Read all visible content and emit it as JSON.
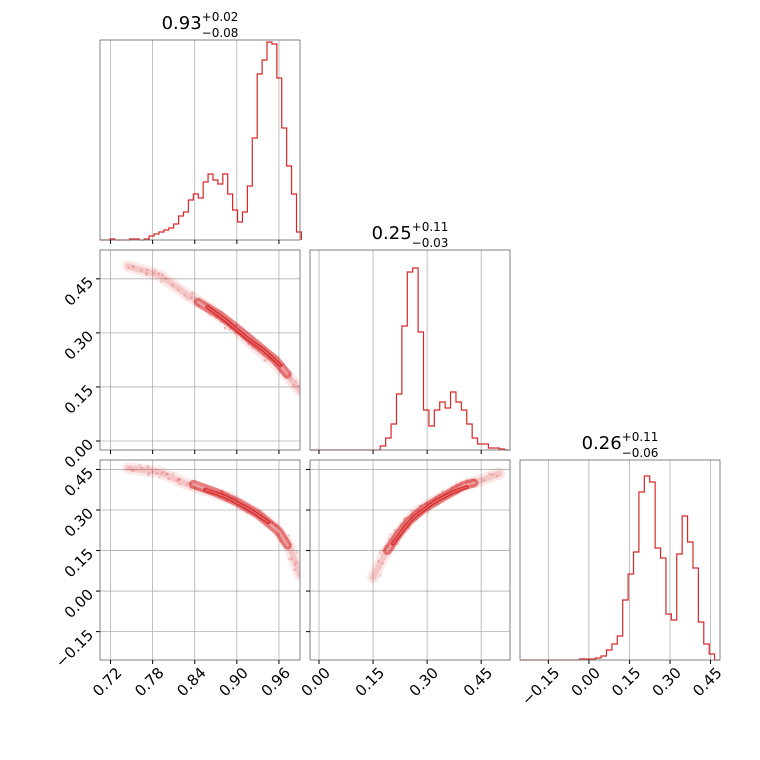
{
  "chart_data": {
    "type": "corner",
    "color": "#d62728",
    "parameters": [
      {
        "title": {
          "median": "0.93",
          "plus": "+0.02",
          "minus": "−0.08"
        },
        "range": [
          0.705,
          0.99
        ],
        "ticks": [
          0.72,
          0.78,
          0.84,
          0.9,
          0.96
        ],
        "tick_labels": [
          "0.72",
          "0.78",
          "0.84",
          "0.90",
          "0.96"
        ],
        "histogram": [
          [
            0.705,
            0.0
          ],
          [
            0.712,
            0.0
          ],
          [
            0.719,
            0.005
          ],
          [
            0.726,
            0.0
          ],
          [
            0.733,
            0.0
          ],
          [
            0.74,
            0.0
          ],
          [
            0.747,
            0.005
          ],
          [
            0.754,
            0.005
          ],
          [
            0.761,
            0.0
          ],
          [
            0.768,
            0.005
          ],
          [
            0.775,
            0.02
          ],
          [
            0.782,
            0.03
          ],
          [
            0.789,
            0.04
          ],
          [
            0.796,
            0.05
          ],
          [
            0.803,
            0.06
          ],
          [
            0.81,
            0.08
          ],
          [
            0.817,
            0.12
          ],
          [
            0.824,
            0.14
          ],
          [
            0.831,
            0.2
          ],
          [
            0.838,
            0.23
          ],
          [
            0.845,
            0.21
          ],
          [
            0.852,
            0.29
          ],
          [
            0.859,
            0.33
          ],
          [
            0.866,
            0.3
          ],
          [
            0.873,
            0.28
          ],
          [
            0.88,
            0.33
          ],
          [
            0.887,
            0.23
          ],
          [
            0.894,
            0.15
          ],
          [
            0.901,
            0.09
          ],
          [
            0.908,
            0.14
          ],
          [
            0.915,
            0.27
          ],
          [
            0.922,
            0.51
          ],
          [
            0.929,
            0.83
          ],
          [
            0.936,
            0.9
          ],
          [
            0.943,
            0.99
          ],
          [
            0.95,
            0.98
          ],
          [
            0.957,
            0.81
          ],
          [
            0.964,
            0.56
          ],
          [
            0.971,
            0.37
          ],
          [
            0.978,
            0.23
          ],
          [
            0.985,
            0.04
          ]
        ]
      },
      {
        "title": {
          "median": "0.25",
          "plus": "+0.11",
          "minus": "−0.03"
        },
        "range": [
          -0.025,
          0.53
        ],
        "ticks": [
          0.0,
          0.15,
          0.3,
          0.45
        ],
        "tick_labels": [
          "0.00",
          "0.15",
          "0.30",
          "0.45"
        ],
        "histogram": [
          [
            -0.025,
            0.0
          ],
          [
            -0.01,
            0.0
          ],
          [
            0.005,
            0.0
          ],
          [
            0.02,
            0.0
          ],
          [
            0.035,
            0.0
          ],
          [
            0.05,
            0.0
          ],
          [
            0.065,
            0.0
          ],
          [
            0.08,
            0.0
          ],
          [
            0.095,
            0.0
          ],
          [
            0.11,
            0.0
          ],
          [
            0.125,
            0.0
          ],
          [
            0.14,
            0.0
          ],
          [
            0.155,
            0.0
          ],
          [
            0.17,
            0.02
          ],
          [
            0.185,
            0.06
          ],
          [
            0.2,
            0.13
          ],
          [
            0.215,
            0.28
          ],
          [
            0.23,
            0.62
          ],
          [
            0.245,
            0.89
          ],
          [
            0.26,
            0.91
          ],
          [
            0.275,
            0.59
          ],
          [
            0.29,
            0.2
          ],
          [
            0.305,
            0.12
          ],
          [
            0.32,
            0.2
          ],
          [
            0.335,
            0.24
          ],
          [
            0.35,
            0.21
          ],
          [
            0.365,
            0.29
          ],
          [
            0.38,
            0.24
          ],
          [
            0.395,
            0.2
          ],
          [
            0.41,
            0.13
          ],
          [
            0.425,
            0.06
          ],
          [
            0.44,
            0.03
          ],
          [
            0.455,
            0.03
          ],
          [
            0.47,
            0.01
          ],
          [
            0.485,
            0.01
          ],
          [
            0.5,
            0.005
          ],
          [
            0.515,
            0.0
          ]
        ]
      },
      {
        "title": {
          "median": "0.26",
          "plus": "+0.11",
          "minus": "−0.06"
        },
        "range": [
          -0.255,
          0.485
        ],
        "ticks": [
          -0.15,
          0.0,
          0.15,
          0.3,
          0.45
        ],
        "tick_labels": [
          "−0.15",
          "0.00",
          "0.15",
          "0.30",
          "0.45"
        ],
        "histogram": [
          [
            -0.255,
            0.0
          ],
          [
            -0.235,
            0.0
          ],
          [
            -0.215,
            0.0
          ],
          [
            -0.195,
            0.0
          ],
          [
            -0.175,
            0.0
          ],
          [
            -0.155,
            0.0
          ],
          [
            -0.135,
            0.0
          ],
          [
            -0.115,
            0.0
          ],
          [
            -0.095,
            0.0
          ],
          [
            -0.075,
            0.0
          ],
          [
            -0.055,
            0.0
          ],
          [
            -0.035,
            0.005
          ],
          [
            -0.015,
            0.005
          ],
          [
            0.005,
            0.005
          ],
          [
            0.025,
            0.01
          ],
          [
            0.045,
            0.02
          ],
          [
            0.065,
            0.05
          ],
          [
            0.085,
            0.08
          ],
          [
            0.105,
            0.12
          ],
          [
            0.125,
            0.3
          ],
          [
            0.145,
            0.43
          ],
          [
            0.165,
            0.54
          ],
          [
            0.185,
            0.84
          ],
          [
            0.205,
            0.92
          ],
          [
            0.225,
            0.89
          ],
          [
            0.245,
            0.56
          ],
          [
            0.265,
            0.51
          ],
          [
            0.285,
            0.23
          ],
          [
            0.305,
            0.2
          ],
          [
            0.325,
            0.53
          ],
          [
            0.345,
            0.72
          ],
          [
            0.365,
            0.59
          ],
          [
            0.385,
            0.46
          ],
          [
            0.405,
            0.19
          ],
          [
            0.425,
            0.08
          ],
          [
            0.445,
            0.03
          ],
          [
            0.465,
            0.0
          ]
        ]
      }
    ],
    "panels_2d": [
      {
        "x_param": 0,
        "y_param": 1,
        "y_range": [
          -0.025,
          0.53
        ],
        "spine": [
          [
            0.745,
            0.485
          ],
          [
            0.79,
            0.46
          ],
          [
            0.83,
            0.405
          ],
          [
            0.86,
            0.37
          ],
          [
            0.89,
            0.325
          ],
          [
            0.91,
            0.29
          ],
          [
            0.93,
            0.255
          ],
          [
            0.95,
            0.225
          ],
          [
            0.975,
            0.175
          ],
          [
            0.99,
            0.14
          ]
        ],
        "contours": [
          [
            [
              0.845,
              0.385
            ],
            [
              0.875,
              0.35
            ],
            [
              0.905,
              0.305
            ],
            [
              0.93,
              0.265
            ],
            [
              0.955,
              0.225
            ],
            [
              0.972,
              0.185
            ]
          ],
          [
            [
              0.858,
              0.372
            ],
            [
              0.882,
              0.338
            ],
            [
              0.915,
              0.285
            ],
            [
              0.94,
              0.25
            ],
            [
              0.962,
              0.21
            ]
          ]
        ]
      },
      {
        "x_param": 0,
        "y_param": 2,
        "y_range": [
          -0.255,
          0.485
        ],
        "spine": [
          [
            0.745,
            0.455
          ],
          [
            0.79,
            0.44
          ],
          [
            0.83,
            0.395
          ],
          [
            0.86,
            0.37
          ],
          [
            0.89,
            0.345
          ],
          [
            0.91,
            0.315
          ],
          [
            0.93,
            0.285
          ],
          [
            0.955,
            0.235
          ],
          [
            0.975,
            0.165
          ],
          [
            0.99,
            0.06
          ]
        ],
        "contours": [
          [
            [
              0.838,
              0.395
            ],
            [
              0.87,
              0.365
            ],
            [
              0.9,
              0.33
            ],
            [
              0.93,
              0.285
            ],
            [
              0.96,
              0.22
            ],
            [
              0.972,
              0.17
            ]
          ],
          [
            [
              0.855,
              0.375
            ],
            [
              0.885,
              0.348
            ],
            [
              0.918,
              0.302
            ],
            [
              0.945,
              0.255
            ]
          ]
        ]
      },
      {
        "x_param": 1,
        "y_param": 2,
        "y_range": [
          -0.255,
          0.485
        ],
        "spine": [
          [
            0.15,
            0.05
          ],
          [
            0.18,
            0.13
          ],
          [
            0.21,
            0.195
          ],
          [
            0.24,
            0.245
          ],
          [
            0.27,
            0.29
          ],
          [
            0.31,
            0.325
          ],
          [
            0.35,
            0.355
          ],
          [
            0.4,
            0.39
          ],
          [
            0.45,
            0.41
          ],
          [
            0.5,
            0.435
          ]
        ],
        "contours": [
          [
            [
              0.19,
              0.15
            ],
            [
              0.22,
              0.21
            ],
            [
              0.25,
              0.26
            ],
            [
              0.29,
              0.305
            ],
            [
              0.34,
              0.345
            ],
            [
              0.4,
              0.39
            ],
            [
              0.43,
              0.4
            ]
          ],
          [
            [
              0.205,
              0.175
            ],
            [
              0.235,
              0.23
            ],
            [
              0.262,
              0.272
            ],
            [
              0.32,
              0.33
            ],
            [
              0.37,
              0.365
            ],
            [
              0.41,
              0.385
            ]
          ]
        ]
      }
    ]
  }
}
